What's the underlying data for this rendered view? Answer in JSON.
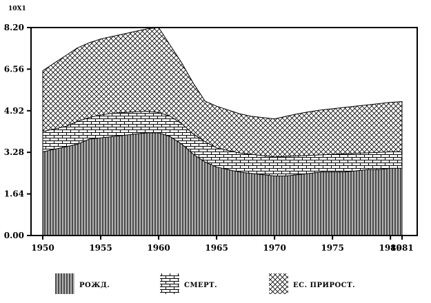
{
  "chart_data": {
    "type": "area",
    "scale_label": "10X1",
    "x": [
      1950,
      1951,
      1952,
      1953,
      1954,
      1955,
      1956,
      1957,
      1958,
      1959,
      1960,
      1961,
      1962,
      1963,
      1964,
      1965,
      1966,
      1967,
      1968,
      1969,
      1970,
      1971,
      1972,
      1973,
      1974,
      1975,
      1976,
      1977,
      1978,
      1979,
      1980,
      1981
    ],
    "x_ticks": [
      "1950",
      "1955",
      "1960",
      "1965",
      "1970",
      "1975",
      "1980",
      "1981"
    ],
    "y_ticks": [
      "0.00",
      "1.64",
      "3.28",
      "4.92",
      "6.56",
      "8.20"
    ],
    "ylim": [
      0,
      8.2
    ],
    "legend_position": "bottom",
    "series": [
      {
        "name": "РОЖД.",
        "pattern": "vertical-lines",
        "values": [
          3.3,
          3.4,
          3.5,
          3.6,
          3.8,
          3.85,
          3.9,
          3.95,
          4.0,
          4.05,
          4.05,
          3.9,
          3.6,
          3.2,
          2.9,
          2.7,
          2.6,
          2.5,
          2.45,
          2.4,
          2.35,
          2.35,
          2.4,
          2.45,
          2.5,
          2.5,
          2.5,
          2.55,
          2.6,
          2.6,
          2.65,
          2.65
        ]
      },
      {
        "name": "СМЕРТ.",
        "pattern": "brick",
        "values": [
          4.1,
          4.2,
          4.3,
          4.5,
          4.65,
          4.75,
          4.82,
          4.85,
          4.88,
          4.9,
          4.85,
          4.7,
          4.4,
          4.0,
          3.7,
          3.45,
          3.35,
          3.25,
          3.2,
          3.15,
          3.1,
          3.12,
          3.14,
          3.16,
          3.18,
          3.2,
          3.22,
          3.24,
          3.26,
          3.28,
          3.3,
          3.3
        ]
      },
      {
        "name": "ЕС. ПРИРОСТ.",
        "pattern": "cross-hatch",
        "values": [
          6.5,
          6.8,
          7.1,
          7.4,
          7.6,
          7.75,
          7.85,
          7.95,
          8.05,
          8.15,
          8.2,
          7.5,
          6.8,
          6.0,
          5.3,
          5.1,
          4.95,
          4.8,
          4.7,
          4.65,
          4.6,
          4.7,
          4.8,
          4.88,
          4.95,
          5.0,
          5.05,
          5.1,
          5.15,
          5.2,
          5.25,
          5.28
        ]
      }
    ]
  }
}
